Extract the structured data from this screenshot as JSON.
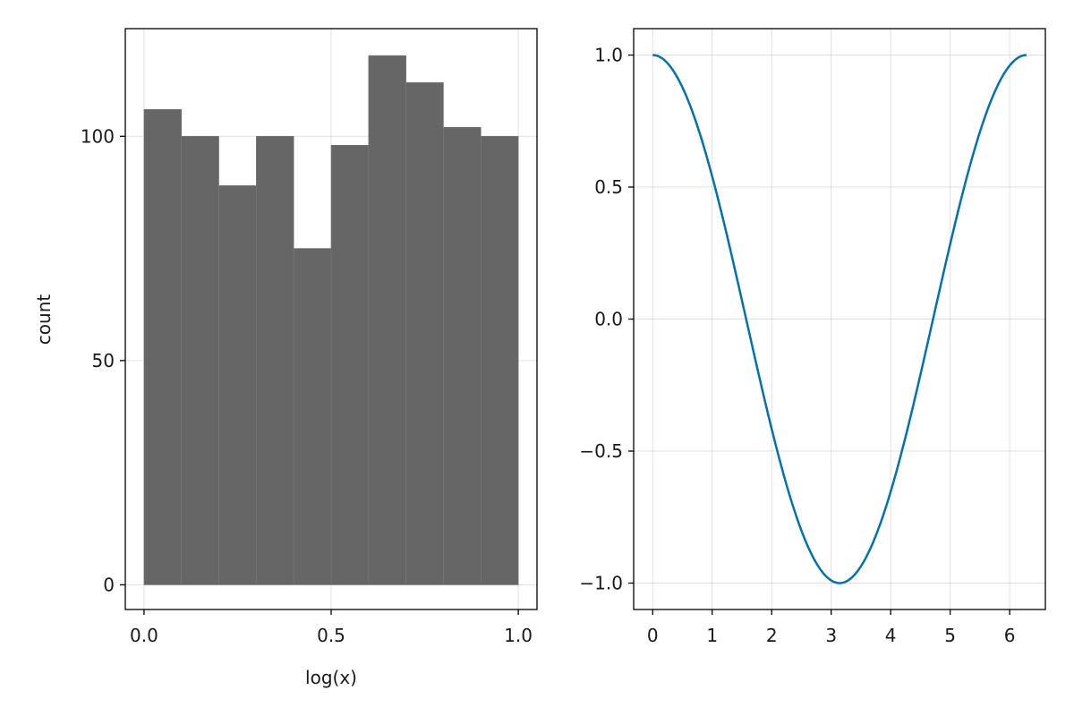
{
  "colors": {
    "bar_fill": "#666666",
    "line": "#0072b2",
    "grid": "#e5e5e5",
    "frame": "#000000",
    "text": "#1a1a1a"
  },
  "chart_data": [
    {
      "type": "bar",
      "subtype": "histogram",
      "title": "",
      "xlabel": "log(x)",
      "ylabel": "count",
      "xlim": [
        -0.05,
        1.05
      ],
      "ylim": [
        -5.5,
        124
      ],
      "grid": true,
      "bins": [
        {
          "x0": 0.0,
          "x1": 0.1,
          "count": 106
        },
        {
          "x0": 0.1,
          "x1": 0.2,
          "count": 100
        },
        {
          "x0": 0.2,
          "x1": 0.3,
          "count": 89
        },
        {
          "x0": 0.3,
          "x1": 0.4,
          "count": 100
        },
        {
          "x0": 0.4,
          "x1": 0.5,
          "count": 75
        },
        {
          "x0": 0.5,
          "x1": 0.6,
          "count": 98
        },
        {
          "x0": 0.6,
          "x1": 0.7,
          "count": 118
        },
        {
          "x0": 0.7,
          "x1": 0.8,
          "count": 112
        },
        {
          "x0": 0.8,
          "x1": 0.9,
          "count": 102
        },
        {
          "x0": 0.9,
          "x1": 1.0,
          "count": 100
        }
      ],
      "x_ticks": [
        {
          "value": 0.0,
          "label": "0.0"
        },
        {
          "value": 0.5,
          "label": "0.5"
        },
        {
          "value": 1.0,
          "label": "1.0"
        }
      ],
      "y_ticks": [
        {
          "value": 0,
          "label": "0"
        },
        {
          "value": 50,
          "label": "50"
        },
        {
          "value": 100,
          "label": "100"
        }
      ]
    },
    {
      "type": "line",
      "title": "",
      "xlabel": "",
      "ylabel": "",
      "function": "cos(x)",
      "x_range": [
        0,
        6.2832
      ],
      "xlim": [
        -0.32,
        6.6
      ],
      "ylim": [
        -1.1,
        1.1
      ],
      "grid": true,
      "x_ticks": [
        {
          "value": 0,
          "label": "0"
        },
        {
          "value": 1,
          "label": "1"
        },
        {
          "value": 2,
          "label": "2"
        },
        {
          "value": 3,
          "label": "3"
        },
        {
          "value": 4,
          "label": "4"
        },
        {
          "value": 5,
          "label": "5"
        },
        {
          "value": 6,
          "label": "6"
        }
      ],
      "y_ticks": [
        {
          "value": 1.0,
          "label": "1.0"
        },
        {
          "value": 0.5,
          "label": "0.5"
        },
        {
          "value": 0.0,
          "label": "0.0"
        },
        {
          "value": -0.5,
          "label": "−0.5"
        },
        {
          "value": -1.0,
          "label": "−1.0"
        }
      ]
    }
  ]
}
